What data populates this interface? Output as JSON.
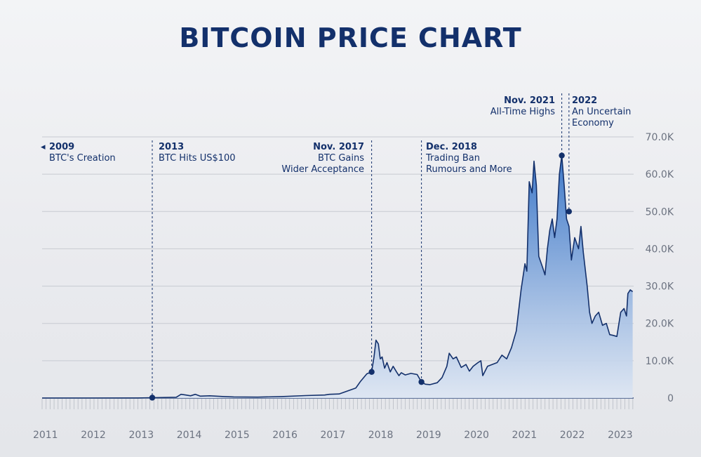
{
  "title": "BITCOIN PRICE CHART",
  "colors": {
    "title": "#13306b",
    "line": "#13306b",
    "fill_top": "#3f79c9",
    "fill_bottom": "#dde6f3",
    "grid": "#c7cad1",
    "tick": "#6b7280"
  },
  "chart_data": {
    "type": "area",
    "title": "BITCOIN PRICE CHART",
    "xlabel": "",
    "ylabel": "",
    "xlim": [
      2011.0,
      2023.35
    ],
    "ylim": [
      0,
      70000
    ],
    "x_ticks": [
      "2011",
      "2012",
      "2013",
      "2014",
      "2015",
      "2016",
      "2017",
      "2018",
      "2019",
      "2020",
      "2021",
      "2022",
      "2023"
    ],
    "y_ticks": [
      {
        "value": 0,
        "label": "0"
      },
      {
        "value": 10000,
        "label": "10.0K"
      },
      {
        "value": 20000,
        "label": "20.0K"
      },
      {
        "value": 30000,
        "label": "30.0K"
      },
      {
        "value": 40000,
        "label": "40.0K"
      },
      {
        "value": 50000,
        "label": "50.0K"
      },
      {
        "value": 60000,
        "label": "60.0K"
      },
      {
        "value": 70000,
        "label": "70.0K"
      }
    ],
    "grid": true,
    "series": [
      {
        "points": [
          [
            2011.0,
            0
          ],
          [
            2012.0,
            5
          ],
          [
            2013.0,
            13
          ],
          [
            2013.3,
            100
          ],
          [
            2013.8,
            200
          ],
          [
            2013.9,
            1000
          ],
          [
            2014.0,
            800
          ],
          [
            2014.1,
            600
          ],
          [
            2014.2,
            1000
          ],
          [
            2014.3,
            500
          ],
          [
            2014.5,
            600
          ],
          [
            2014.8,
            400
          ],
          [
            2015.0,
            300
          ],
          [
            2015.5,
            250
          ],
          [
            2016.0,
            400
          ],
          [
            2016.5,
            650
          ],
          [
            2016.9,
            800
          ],
          [
            2017.0,
            1000
          ],
          [
            2017.2,
            1100
          ],
          [
            2017.4,
            2000
          ],
          [
            2017.55,
            2700
          ],
          [
            2017.65,
            4500
          ],
          [
            2017.78,
            6500
          ],
          [
            2017.88,
            7000
          ],
          [
            2017.93,
            11000
          ],
          [
            2017.97,
            15500
          ],
          [
            2018.02,
            14500
          ],
          [
            2018.06,
            10500
          ],
          [
            2018.1,
            11000
          ],
          [
            2018.15,
            8000
          ],
          [
            2018.2,
            9500
          ],
          [
            2018.27,
            7000
          ],
          [
            2018.33,
            8500
          ],
          [
            2018.4,
            7000
          ],
          [
            2018.45,
            6000
          ],
          [
            2018.5,
            6800
          ],
          [
            2018.58,
            6200
          ],
          [
            2018.7,
            6600
          ],
          [
            2018.83,
            6300
          ],
          [
            2018.92,
            4300
          ],
          [
            2019.0,
            3700
          ],
          [
            2019.1,
            3600
          ],
          [
            2019.25,
            4100
          ],
          [
            2019.35,
            5500
          ],
          [
            2019.45,
            8500
          ],
          [
            2019.5,
            12000
          ],
          [
            2019.58,
            10500
          ],
          [
            2019.65,
            11000
          ],
          [
            2019.75,
            8200
          ],
          [
            2019.85,
            9000
          ],
          [
            2019.92,
            7200
          ],
          [
            2020.0,
            8500
          ],
          [
            2020.1,
            9500
          ],
          [
            2020.16,
            10000
          ],
          [
            2020.2,
            6000
          ],
          [
            2020.3,
            8500
          ],
          [
            2020.5,
            9500
          ],
          [
            2020.6,
            11500
          ],
          [
            2020.7,
            10500
          ],
          [
            2020.8,
            13500
          ],
          [
            2020.9,
            18000
          ],
          [
            2021.0,
            29000
          ],
          [
            2021.08,
            36000
          ],
          [
            2021.12,
            34000
          ],
          [
            2021.17,
            58000
          ],
          [
            2021.23,
            55000
          ],
          [
            2021.27,
            63500
          ],
          [
            2021.32,
            57000
          ],
          [
            2021.37,
            38000
          ],
          [
            2021.45,
            35000
          ],
          [
            2021.5,
            33000
          ],
          [
            2021.55,
            40000
          ],
          [
            2021.6,
            45000
          ],
          [
            2021.65,
            48000
          ],
          [
            2021.7,
            43000
          ],
          [
            2021.75,
            48000
          ],
          [
            2021.8,
            60000
          ],
          [
            2021.85,
            65000
          ],
          [
            2021.9,
            57000
          ],
          [
            2021.95,
            48000
          ],
          [
            2022.0,
            46000
          ],
          [
            2022.05,
            37000
          ],
          [
            2022.12,
            43000
          ],
          [
            2022.2,
            40000
          ],
          [
            2022.25,
            46000
          ],
          [
            2022.3,
            39000
          ],
          [
            2022.38,
            30000
          ],
          [
            2022.43,
            23000
          ],
          [
            2022.48,
            20000
          ],
          [
            2022.55,
            22000
          ],
          [
            2022.62,
            23000
          ],
          [
            2022.7,
            19500
          ],
          [
            2022.78,
            20000
          ],
          [
            2022.85,
            17000
          ],
          [
            2022.92,
            16800
          ],
          [
            2023.0,
            16500
          ],
          [
            2023.08,
            23000
          ],
          [
            2023.15,
            24000
          ],
          [
            2023.2,
            22000
          ],
          [
            2023.23,
            28000
          ],
          [
            2023.28,
            29000
          ],
          [
            2023.33,
            28500
          ]
        ]
      }
    ],
    "annotations": [
      {
        "year": "2009",
        "text": [
          "BTC's Creation"
        ],
        "x": null,
        "y": null,
        "align": "left",
        "arrow": "◂"
      },
      {
        "year": "2013",
        "text": [
          "BTC Hits US$100"
        ],
        "x": 2013.3,
        "y": 100,
        "align": "left"
      },
      {
        "year": "Nov. 2017",
        "text": [
          "BTC Gains",
          "Wider Acceptance"
        ],
        "x": 2017.88,
        "y": 7000,
        "align": "right"
      },
      {
        "year": "Dec. 2018",
        "text": [
          "Trading Ban",
          "Rumours and More"
        ],
        "x": 2018.92,
        "y": 4300,
        "align": "left"
      },
      {
        "year": "Nov. 2021",
        "text": [
          "All-Time Highs"
        ],
        "x": 2021.85,
        "y": 65000,
        "align": "right"
      },
      {
        "year": "2022",
        "text": [
          "An Uncertain",
          "Economy"
        ],
        "x": 2022.0,
        "y": 50000,
        "align": "left"
      }
    ]
  }
}
